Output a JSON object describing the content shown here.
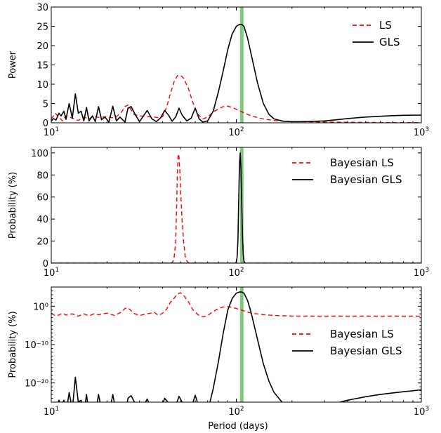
{
  "chart_data": [
    {
      "type": "line",
      "xlabel": "",
      "ylabel": "Power",
      "x_scale": "log",
      "xlim": [
        10,
        1000
      ],
      "ylim": [
        0,
        30
      ],
      "y_scale": "linear",
      "yticks": [
        0,
        5,
        10,
        15,
        20,
        25,
        30
      ],
      "ytick_labels": [
        "0",
        "5",
        "10",
        "15",
        "20",
        "25",
        "30"
      ],
      "xticks": [
        10,
        100,
        1000
      ],
      "legend_position": "top-right",
      "marker_line": {
        "x": 107,
        "color": "#7fc97f"
      },
      "series": [
        {
          "name": "LS",
          "color": "#ff0000",
          "style": "dashed",
          "x": [
            10,
            10.5,
            11,
            11.5,
            12,
            13,
            14,
            15,
            16,
            17,
            18,
            20,
            22,
            24,
            25,
            26,
            28,
            30,
            33,
            36,
            38,
            40,
            42,
            44,
            46,
            48,
            50,
            52,
            55,
            58,
            62,
            66,
            70,
            75,
            80,
            85,
            90,
            95,
            100,
            110,
            120,
            140,
            160,
            180,
            200,
            250,
            300,
            400,
            500,
            700,
            1000
          ],
          "y": [
            1.0,
            2.5,
            1.5,
            0.5,
            1.8,
            1.2,
            0.6,
            1.5,
            1.0,
            1.8,
            1.4,
            1.6,
            1.2,
            2.8,
            4.2,
            4.6,
            2.2,
            1.8,
            1.6,
            1.5,
            1.3,
            1.6,
            4.0,
            7.5,
            10.5,
            12.2,
            12.3,
            11.5,
            9.0,
            5.5,
            2.2,
            1.0,
            1.5,
            2.8,
            3.6,
            4.2,
            4.3,
            4.0,
            3.5,
            2.6,
            1.8,
            1.0,
            0.6,
            0.4,
            0.3,
            0.25,
            0.2,
            0.15,
            0.1,
            0.05,
            0.05
          ]
        },
        {
          "name": "GLS",
          "color": "#000000",
          "style": "solid",
          "x": [
            10,
            10.3,
            10.6,
            11,
            11.3,
            11.7,
            12,
            12.5,
            13,
            13.5,
            14,
            14.5,
            15,
            15.5,
            16,
            16.7,
            17.3,
            18,
            18.7,
            19.5,
            20.5,
            21.5,
            22.5,
            23.5,
            25,
            26,
            27,
            28.5,
            30,
            31.5,
            33,
            35,
            37,
            39,
            41,
            43,
            45,
            47,
            49,
            51,
            54,
            57,
            60,
            63,
            66,
            70,
            75,
            80,
            85,
            90,
            95,
            100,
            104,
            107,
            110,
            115,
            120,
            130,
            140,
            150,
            160,
            180,
            200,
            220,
            250,
            300,
            350,
            400,
            500,
            600,
            700,
            800,
            1000
          ],
          "y": [
            0.5,
            1.1,
            0.7,
            2.5,
            1.8,
            3.0,
            0.9,
            5.0,
            1.2,
            7.5,
            2.5,
            3.0,
            0.5,
            4.0,
            0.5,
            1.8,
            0.3,
            4.2,
            0.8,
            1.5,
            0.2,
            4.3,
            0.5,
            1.5,
            0.2,
            3.8,
            4.2,
            2.0,
            0.3,
            1.8,
            3.2,
            1.0,
            0.3,
            1.3,
            3.2,
            2.0,
            0.4,
            1.5,
            3.8,
            2.0,
            0.5,
            1.2,
            3.8,
            1.0,
            0.2,
            0.5,
            3.0,
            8.0,
            13.5,
            19.0,
            23.0,
            25.0,
            25.5,
            25.5,
            25.0,
            22.0,
            18.0,
            10.5,
            5.0,
            2.2,
            1.0,
            0.4,
            0.3,
            0.3,
            0.35,
            0.5,
            0.8,
            1.1,
            1.5,
            1.7,
            1.85,
            1.95,
            2.0
          ]
        }
      ]
    },
    {
      "type": "line",
      "xlabel": "",
      "ylabel": "Probability (%)",
      "x_scale": "log",
      "xlim": [
        10,
        1000
      ],
      "ylim": [
        0,
        105
      ],
      "y_scale": "linear",
      "yticks": [
        0,
        20,
        40,
        60,
        80,
        100
      ],
      "ytick_labels": [
        "0",
        "20",
        "40",
        "60",
        "80",
        "100"
      ],
      "xticks": [
        10,
        100,
        1000
      ],
      "legend_position": "top-right",
      "marker_line": {
        "x": 107,
        "color": "#7fc97f"
      },
      "series": [
        {
          "name": "Bayesian LS",
          "color": "#ff0000",
          "style": "dashed",
          "x": [
            10,
            44,
            45,
            46,
            47,
            47.5,
            48,
            48.5,
            49,
            49.5,
            50,
            51,
            52,
            53,
            54,
            55,
            56,
            1000
          ],
          "y": [
            0,
            0,
            0.5,
            3,
            18,
            45,
            80,
            99,
            97,
            85,
            65,
            38,
            18,
            6,
            2,
            0.5,
            0,
            0
          ]
        },
        {
          "name": "Bayesian GLS",
          "color": "#000000",
          "style": "solid",
          "x": [
            10,
            99,
            100,
            101,
            102,
            103,
            104,
            105,
            106,
            107,
            108,
            109,
            110,
            111,
            112,
            113,
            1000
          ],
          "y": [
            0,
            0,
            1,
            5,
            20,
            55,
            90,
            100,
            85,
            55,
            25,
            8,
            2,
            0.5,
            0,
            0,
            0
          ]
        }
      ]
    },
    {
      "type": "line",
      "xlabel": "Period (days)",
      "ylabel": "Probability (%)",
      "x_scale": "log",
      "xlim": [
        10,
        1000
      ],
      "ylim": [
        -25,
        5
      ],
      "y_scale": "log",
      "yticks": [
        -20,
        -10,
        0
      ],
      "ytick_labels": [
        "10⁻²⁰",
        "10⁻¹⁰",
        "10⁰"
      ],
      "xticks": [
        10,
        100,
        1000
      ],
      "legend_position": "center-right",
      "marker_line": {
        "x": 107,
        "color": "#7fc97f"
      },
      "series": [
        {
          "name": "Bayesian LS",
          "color": "#ff0000",
          "style": "dashed",
          "x": [
            10,
            10.5,
            11,
            11.5,
            12,
            13,
            14,
            15,
            16,
            17,
            18,
            20,
            22,
            24,
            25,
            26,
            28,
            30,
            33,
            36,
            38,
            40,
            42,
            44,
            46,
            48,
            50,
            52,
            55,
            58,
            62,
            66,
            70,
            75,
            80,
            85,
            90,
            95,
            100,
            110,
            120,
            140,
            160,
            180,
            200,
            250,
            300,
            400,
            500,
            700,
            1000
          ],
          "y": [
            -1.8,
            -2.5,
            -2.3,
            -1.8,
            -2.3,
            -2.0,
            -2.6,
            -2.0,
            -2.5,
            -2.0,
            -2.2,
            -1.8,
            -2.4,
            -1.5,
            -0.6,
            -0.4,
            -1.9,
            -2.4,
            -2.0,
            -1.6,
            -2.4,
            -1.8,
            -0.8,
            1.0,
            2.0,
            3.2,
            3.5,
            2.8,
            1.2,
            -0.8,
            -2.2,
            -2.8,
            -2.4,
            -1.4,
            -0.6,
            -0.2,
            -0.1,
            -0.3,
            -0.6,
            -1.2,
            -1.8,
            -2.2,
            -2.4,
            -2.5,
            -2.55,
            -2.6,
            -2.6,
            -2.6,
            -2.6,
            -2.6,
            -2.6
          ]
        },
        {
          "name": "Bayesian GLS",
          "color": "#000000",
          "style": "solid",
          "x": [
            10,
            10.3,
            10.6,
            11,
            11.3,
            11.7,
            12,
            12.5,
            13,
            13.5,
            14,
            14.5,
            15,
            15.5,
            16,
            16.7,
            17.3,
            18,
            18.7,
            19.5,
            20.5,
            21.5,
            22.5,
            23.5,
            25,
            26,
            27,
            28.5,
            30,
            31.5,
            33,
            35,
            37,
            39,
            41,
            43,
            45,
            47,
            49,
            51,
            54,
            57,
            60,
            63,
            66,
            70,
            75,
            80,
            85,
            90,
            95,
            100,
            104,
            107,
            110,
            115,
            120,
            130,
            140,
            150,
            160,
            180,
            200,
            220,
            250,
            300,
            350,
            400,
            500,
            600,
            700,
            800,
            1000
          ],
          "y": [
            -28,
            -26.5,
            -27.5,
            -24.5,
            -26,
            -24.5,
            -28,
            -22.5,
            -27,
            -18.5,
            -25,
            -24.5,
            -28,
            -23,
            -28,
            -25.5,
            -28.5,
            -23,
            -27,
            -26,
            -28.5,
            -23,
            -28,
            -26,
            -28.5,
            -24,
            -23.3,
            -25.5,
            -28.5,
            -26,
            -24.2,
            -27,
            -28.5,
            -27,
            -24,
            -25.2,
            -28.2,
            -26,
            -23.5,
            -25,
            -28,
            -26.5,
            -23.2,
            -26.5,
            -28.5,
            -27.5,
            -21.5,
            -14.5,
            -7,
            -1,
            2.0,
            3.4,
            3.7,
            3.7,
            3.4,
            1.5,
            -1.5,
            -8.5,
            -15,
            -19.5,
            -22.5,
            -25.5,
            -26.8,
            -27,
            -26.8,
            -26,
            -25.2,
            -24.5,
            -23.6,
            -23,
            -22.6,
            -22.3,
            -21.8
          ]
        }
      ]
    }
  ]
}
